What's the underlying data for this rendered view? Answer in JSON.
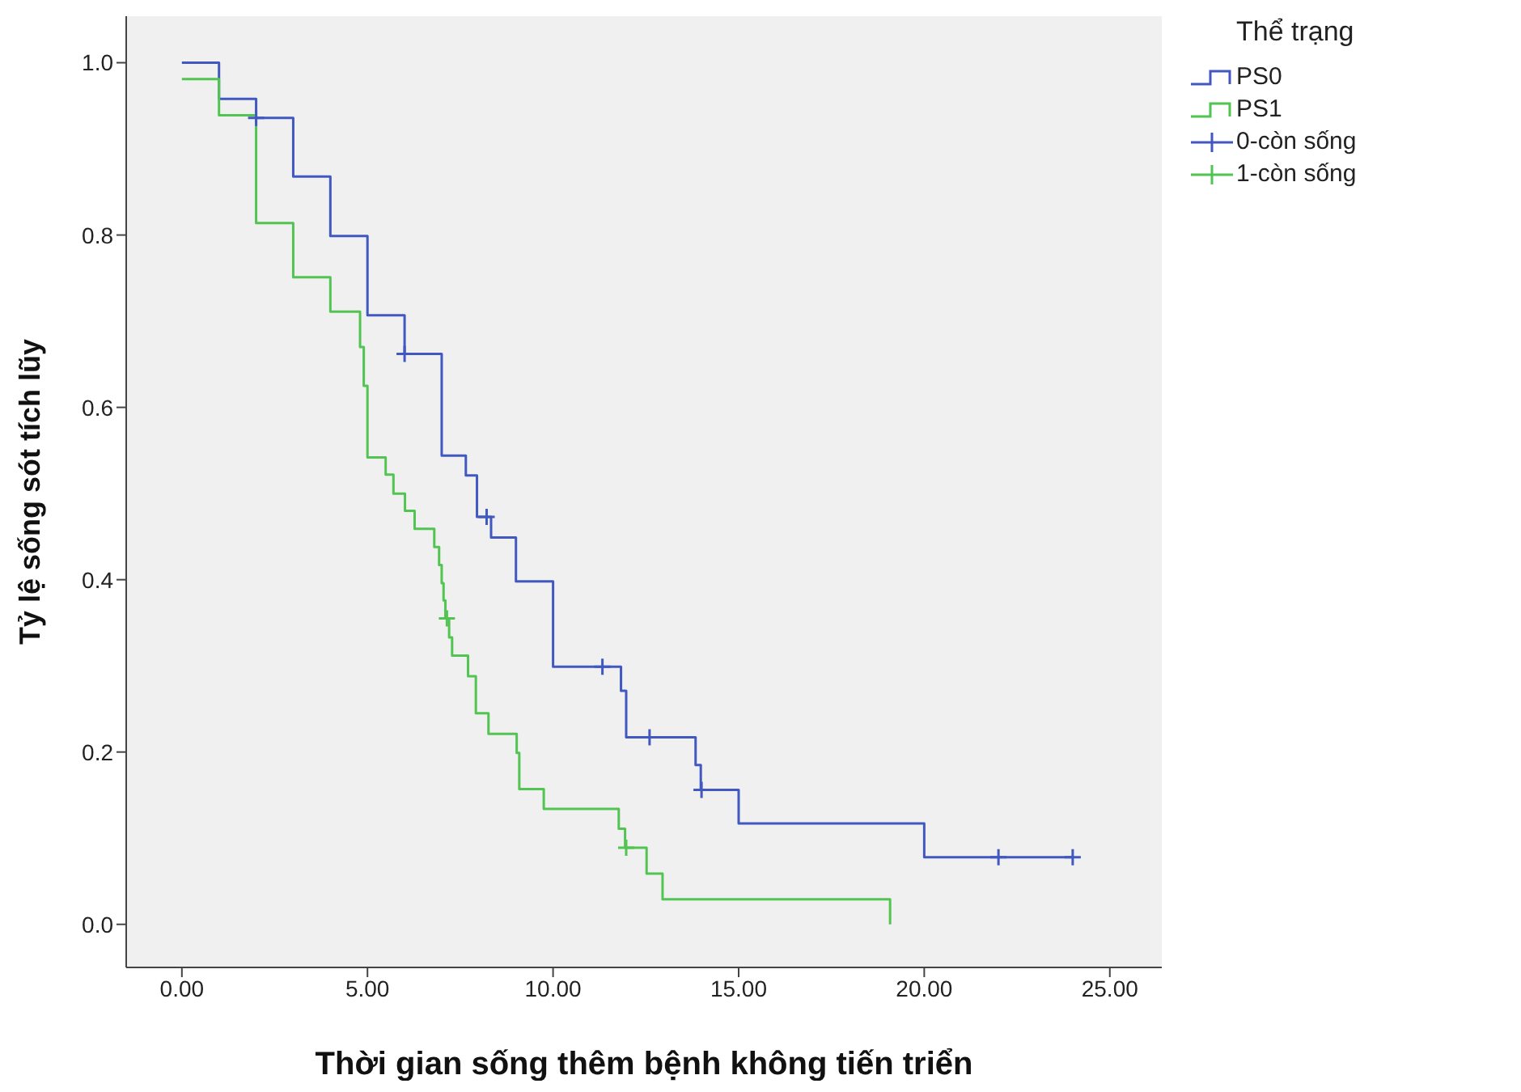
{
  "chart_data": {
    "type": "step",
    "xlabel": "Thời gian sống thêm bệnh không tiến triển",
    "ylabel": "Tỷ lệ sống sót tích lũy",
    "legend_title": "Thể trạng",
    "legend": "top right",
    "grid": false,
    "marker": "none",
    "xlim": [
      -1.5,
      26.4
    ],
    "ylim": [
      -0.05,
      1.054
    ],
    "xticks": [
      {
        "value": 0,
        "label": "0.00"
      },
      {
        "value": 5,
        "label": "5.00"
      },
      {
        "value": 10,
        "label": "10.00"
      },
      {
        "value": 15,
        "label": "15.00"
      },
      {
        "value": 20,
        "label": "20.00"
      },
      {
        "value": 25,
        "label": "25.00"
      }
    ],
    "yticks": [
      {
        "value": 0,
        "label": "0.0"
      },
      {
        "value": 0.2,
        "label": "0.2"
      },
      {
        "value": 0.4,
        "label": "0.4"
      },
      {
        "value": 0.6,
        "label": "0.6"
      },
      {
        "value": 0.8,
        "label": "0.8"
      },
      {
        "value": 1,
        "label": "1.0"
      }
    ],
    "series": [
      {
        "name": "PS0",
        "color": "#4058c0",
        "x": [
          0,
          1,
          2,
          3,
          4,
          5,
          6,
          7,
          7.65,
          7.95,
          8.33,
          9,
          10,
          11.83,
          11.97,
          13.84,
          13.98,
          15,
          20,
          24
        ],
        "values": [
          1.0,
          0.958,
          0.936,
          0.868,
          0.799,
          0.707,
          0.662,
          0.544,
          0.521,
          0.473,
          0.449,
          0.398,
          0.299,
          0.271,
          0.217,
          0.185,
          0.156,
          0.117,
          0.078,
          0.078
        ]
      },
      {
        "name": "PS1",
        "color": "#52c452",
        "x": [
          0,
          1,
          2,
          3,
          4,
          4.8,
          4.9,
          5,
          5.49,
          5.7,
          6.01,
          6.27,
          6.8,
          6.93,
          7,
          7.05,
          7.1,
          7.2,
          7.28,
          7.71,
          7.92,
          8.26,
          9.02,
          9.09,
          9.75,
          11.77,
          11.94,
          12.52,
          12.95,
          19.08
        ],
        "values": [
          0.981,
          0.939,
          0.814,
          0.751,
          0.711,
          0.67,
          0.625,
          0.542,
          0.522,
          0.5,
          0.48,
          0.459,
          0.438,
          0.417,
          0.396,
          0.376,
          0.355,
          0.333,
          0.312,
          0.288,
          0.245,
          0.221,
          0.199,
          0.157,
          0.134,
          0.111,
          0.089,
          0.059,
          0.029,
          0
        ]
      },
      {
        "name": "0-còn sống",
        "type": "scatter",
        "marker": "cross",
        "color": "#4058c0",
        "x": [
          2,
          6,
          8.21,
          11.33,
          12.6,
          14,
          22,
          24
        ],
        "values": [
          0.936,
          0.662,
          0.473,
          0.299,
          0.217,
          0.156,
          0.078,
          0.078
        ]
      },
      {
        "name": "1-còn sống",
        "type": "scatter",
        "marker": "cross",
        "color": "#52c452",
        "x": [
          7.14,
          11.97
        ],
        "values": [
          0.355,
          0.089
        ]
      }
    ]
  }
}
